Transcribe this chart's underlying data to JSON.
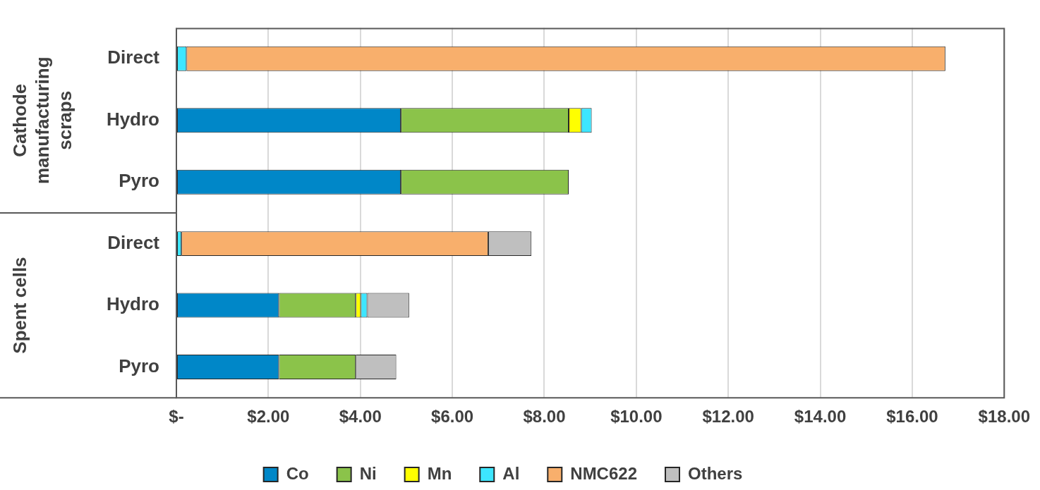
{
  "chart_data": {
    "type": "bar",
    "orientation": "horizontal",
    "stacked": true,
    "categories": [
      "Direct",
      "Hydro",
      "Pyro",
      "Direct",
      "Hydro",
      "Pyro"
    ],
    "series": [
      {
        "name": "Co",
        "color": "#0087c8",
        "values": [
          null,
          4.88,
          4.88,
          null,
          2.23,
          2.23
        ]
      },
      {
        "name": "Ni",
        "color": "#8bc34a",
        "values": [
          null,
          3.65,
          3.65,
          null,
          1.67,
          1.67
        ]
      },
      {
        "name": "Mn",
        "color": "#ffff00",
        "values": [
          null,
          0.27,
          null,
          null,
          0.11,
          null
        ]
      },
      {
        "name": "Al",
        "color": "#3de6ff",
        "values": [
          0.22,
          0.23,
          null,
          0.11,
          0.14,
          null
        ]
      },
      {
        "name": "NMC622",
        "color": "#f8af6c",
        "values": [
          16.5,
          null,
          null,
          6.67,
          null,
          null
        ]
      },
      {
        "name": "Others",
        "color": "#bfbfbf",
        "values": [
          null,
          null,
          null,
          0.94,
          0.91,
          0.88
        ]
      }
    ],
    "xlim": [
      0,
      18
    ],
    "xticks": [
      {
        "value": 0,
        "label": "$-"
      },
      {
        "value": 2,
        "label": "$2.00"
      },
      {
        "value": 4,
        "label": "$4.00"
      },
      {
        "value": 6,
        "label": "$6.00"
      },
      {
        "value": 8,
        "label": "$8.00"
      },
      {
        "value": 10,
        "label": "$10.00"
      },
      {
        "value": 12,
        "label": "$12.00"
      },
      {
        "value": 14,
        "label": "$14.00"
      },
      {
        "value": 16,
        "label": "$16.00"
      },
      {
        "value": 18,
        "label": "$18.00"
      }
    ],
    "grid": "x",
    "legend": "bottom",
    "annotations": [
      "Cathode manufacturing scraps",
      "Spent cells"
    ]
  }
}
